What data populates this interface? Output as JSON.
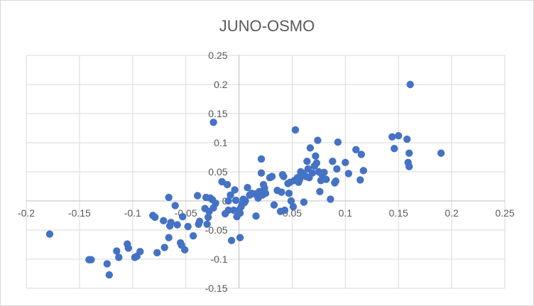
{
  "chart_data": {
    "type": "scatter",
    "title": "JUNO-OSMO",
    "xlabel": "",
    "ylabel": "",
    "xlim": [
      -0.2,
      0.25
    ],
    "ylim": [
      -0.15,
      0.25
    ],
    "x_ticks": [
      -0.2,
      -0.15,
      -0.1,
      -0.05,
      0,
      0.05,
      0.1,
      0.15,
      0.2,
      0.25
    ],
    "x_tick_labels": [
      "-0.2",
      "-0.15",
      "-0.1",
      "-0.05",
      "0",
      "0.05",
      "0.1",
      "0.15",
      "0.2",
      "0.25"
    ],
    "y_ticks": [
      -0.15,
      -0.1,
      -0.05,
      0,
      0.05,
      0.1,
      0.15,
      0.2,
      0.25
    ],
    "y_tick_labels": [
      "-0.15",
      "-0.1",
      "-0.05",
      "0",
      "0.05",
      "0.1",
      "0.15",
      "0.2",
      "0.25"
    ],
    "grid": true,
    "marker_color": "#4472C4",
    "series": [
      {
        "points": [
          [
            -0.178,
            -0.057
          ],
          [
            -0.141,
            -0.101
          ],
          [
            -0.139,
            -0.101
          ],
          [
            -0.124,
            -0.108
          ],
          [
            -0.122,
            -0.127
          ],
          [
            -0.115,
            -0.086
          ],
          [
            -0.113,
            -0.097
          ],
          [
            -0.105,
            -0.074
          ],
          [
            -0.104,
            -0.081
          ],
          [
            -0.098,
            -0.097
          ],
          [
            -0.096,
            -0.095
          ],
          [
            -0.093,
            -0.087
          ],
          [
            -0.081,
            -0.025
          ],
          [
            -0.079,
            -0.028
          ],
          [
            -0.077,
            -0.089
          ],
          [
            -0.071,
            -0.034
          ],
          [
            -0.07,
            -0.08
          ],
          [
            -0.066,
            0.006
          ],
          [
            -0.065,
            -0.043
          ],
          [
            -0.066,
            -0.063
          ],
          [
            -0.064,
            -0.037
          ],
          [
            -0.06,
            -0.008
          ],
          [
            -0.058,
            -0.041
          ],
          [
            -0.055,
            -0.072
          ],
          [
            -0.054,
            -0.076
          ],
          [
            -0.053,
            -0.027
          ],
          [
            -0.051,
            -0.084
          ],
          [
            -0.048,
            -0.044
          ],
          [
            -0.043,
            -0.06
          ],
          [
            -0.039,
            0.009
          ],
          [
            -0.038,
            -0.04
          ],
          [
            -0.037,
            -0.035
          ],
          [
            -0.032,
            -0.013
          ],
          [
            -0.031,
            0.006
          ],
          [
            -0.029,
            -0.028
          ],
          [
            -0.03,
            -0.04
          ],
          [
            -0.028,
            -0.018
          ],
          [
            -0.027,
            0.005
          ],
          [
            -0.025,
            0.002
          ],
          [
            -0.024,
            -0.012
          ],
          [
            -0.022,
            -0.004
          ],
          [
            -0.024,
            0.135
          ],
          [
            -0.016,
            0.033
          ],
          [
            -0.013,
            -0.022
          ],
          [
            -0.011,
            0.028
          ],
          [
            -0.01,
            0.0
          ],
          [
            -0.01,
            -0.016
          ],
          [
            -0.008,
            0.01
          ],
          [
            -0.007,
            -0.068
          ],
          [
            -0.005,
            -0.016
          ],
          [
            -0.004,
            0.019
          ],
          [
            -0.003,
            0.001
          ],
          [
            -0.002,
            -0.027
          ],
          [
            0.0,
            -0.016
          ],
          [
            0.001,
            -0.021
          ],
          [
            0.001,
            -0.063
          ],
          [
            0.002,
            -0.01
          ],
          [
            0.003,
            -0.005
          ],
          [
            0.004,
            0.003
          ],
          [
            0.005,
            -0.003
          ],
          [
            0.006,
            0.0
          ],
          [
            0.008,
            0.023
          ],
          [
            0.01,
            0.01
          ],
          [
            0.012,
            0.013
          ],
          [
            0.015,
            0.012
          ],
          [
            0.016,
            -0.026
          ],
          [
            0.018,
            0.005
          ],
          [
            0.019,
            0.016
          ],
          [
            0.021,
            0.072
          ],
          [
            0.021,
            0.048
          ],
          [
            0.022,
            0.01
          ],
          [
            0.023,
            0.028
          ],
          [
            0.024,
            0.022
          ],
          [
            0.025,
            0.013
          ],
          [
            0.029,
            0.04
          ],
          [
            0.031,
            0.042
          ],
          [
            0.033,
            -0.007
          ],
          [
            0.036,
            0.018
          ],
          [
            0.039,
            -0.018
          ],
          [
            0.04,
            0.015
          ],
          [
            0.041,
            0.045
          ],
          [
            0.042,
            0.042
          ],
          [
            0.043,
            -0.016
          ],
          [
            0.046,
            0.03
          ],
          [
            0.047,
            0.013
          ],
          [
            0.048,
            0.032
          ],
          [
            0.049,
            0.0
          ],
          [
            0.051,
            -0.01
          ],
          [
            0.052,
            0.035
          ],
          [
            0.053,
            0.122
          ],
          [
            0.055,
            0.04
          ],
          [
            0.056,
            0.032
          ],
          [
            0.057,
            0.037
          ],
          [
            0.058,
            0.05
          ],
          [
            0.06,
            0.048
          ],
          [
            0.061,
            -0.002
          ],
          [
            0.063,
            0.042
          ],
          [
            0.064,
            0.068
          ],
          [
            0.065,
            0.055
          ],
          [
            0.066,
            0.04
          ],
          [
            0.067,
            0.091
          ],
          [
            0.069,
            0.048
          ],
          [
            0.071,
            0.06
          ],
          [
            0.072,
            0.077
          ],
          [
            0.073,
            0.065
          ],
          [
            0.074,
            0.104
          ],
          [
            0.075,
            0.05
          ],
          [
            0.076,
            0.016
          ],
          [
            0.077,
            0.035
          ],
          [
            0.078,
            0.045
          ],
          [
            0.08,
            0.049
          ],
          [
            0.082,
            0.037
          ],
          [
            0.086,
            0.003
          ],
          [
            0.088,
            0.068
          ],
          [
            0.09,
            0.031
          ],
          [
            0.091,
            0.034
          ],
          [
            0.092,
            0.055
          ],
          [
            0.093,
            0.101
          ],
          [
            0.1,
            0.066
          ],
          [
            0.103,
            0.047
          ],
          [
            0.11,
            0.088
          ],
          [
            0.114,
            0.036
          ],
          [
            0.115,
            0.08
          ],
          [
            0.117,
            0.052
          ],
          [
            0.144,
            0.11
          ],
          [
            0.146,
            0.09
          ],
          [
            0.15,
            0.112
          ],
          [
            0.158,
            0.106
          ],
          [
            0.159,
            0.066
          ],
          [
            0.16,
            0.059
          ],
          [
            0.16,
            0.082
          ],
          [
            0.161,
            0.2
          ],
          [
            0.19,
            0.082
          ]
        ]
      }
    ]
  }
}
